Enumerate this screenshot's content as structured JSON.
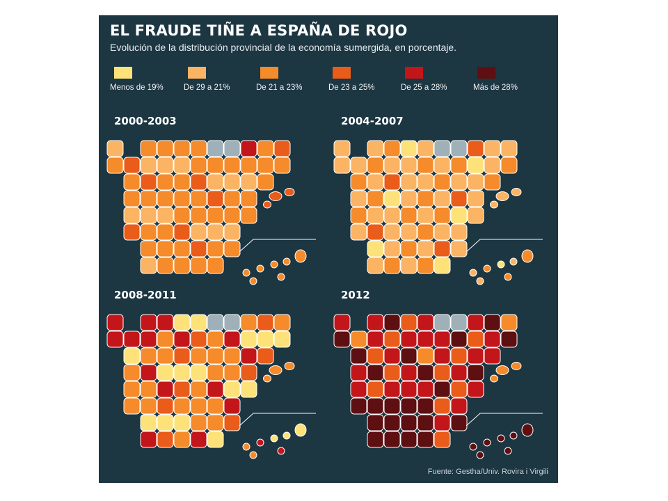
{
  "title": "EL FRAUDE TIÑE A ESPAÑA DE ROJO",
  "subtitle": "Evolución de la distribución provincial de la economía sumergida, en porcentaje.",
  "legend": [
    {
      "label": "Menos de 19%",
      "color": "#fde27a"
    },
    {
      "label": "De 29 a 21%",
      "color": "#fbb463"
    },
    {
      "label": "De 21 a 23%",
      "color": "#f58b2a"
    },
    {
      "label": "De 23 a 25%",
      "color": "#ea5c19"
    },
    {
      "label": "De 25 a 28%",
      "color": "#c2161b"
    },
    {
      "label": "Más de 28%",
      "color": "#5e0f12"
    }
  ],
  "no_data_color": "#9fb0b8",
  "maps": [
    {
      "period": "2000-2003",
      "dominant_class": 2
    },
    {
      "period": "2004-2007",
      "dominant_class": 1
    },
    {
      "period": "2008-2011",
      "dominant_class": 2
    },
    {
      "period": "2012",
      "dominant_class": 4
    }
  ],
  "source": "Fuente: Gestha/Univ. Rovira i Virgili"
}
